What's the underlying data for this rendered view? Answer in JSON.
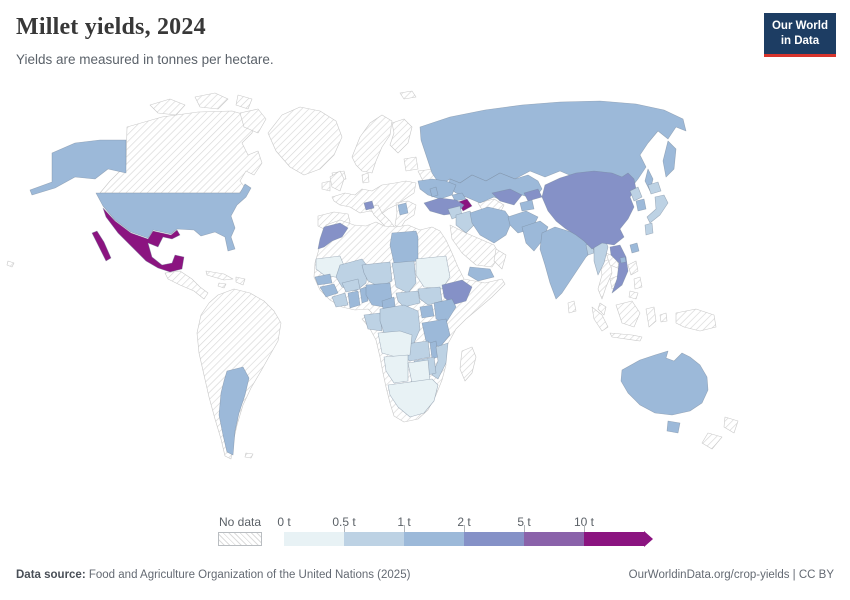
{
  "header": {
    "title": "Millet yields, 2024",
    "subtitle": "Yields are measured in tonnes per hectare."
  },
  "logo": {
    "line1": "Our World",
    "line2": "in Data",
    "bg": "#1d3d63",
    "accent": "#d7342d"
  },
  "legend": {
    "no_data_label": "No data",
    "tick_labels": [
      "0 t",
      "0.5 t",
      "1 t",
      "2 t",
      "5 t",
      "10 t"
    ],
    "bin_order": [
      "0-0.5",
      "0.5-1",
      "1-2",
      "2-5",
      "5-10",
      "10+"
    ]
  },
  "chart_data": {
    "type": "heatmap",
    "title": "Millet yields, 2024",
    "subtitle": "Yields are measured in tonnes per hectare.",
    "unit": "tonnes per hectare",
    "bins": [
      "0-0.5 t",
      "0.5-1 t",
      "1-2 t",
      "2-5 t",
      "5-10 t",
      "10+ t",
      "No data"
    ],
    "legend_position": "bottom"
  },
  "map": {
    "palette": {
      "0-0.5": "#e8f2f5",
      "0.5-1": "#bdd2e4",
      "1-2": "#9cb9d9",
      "2-5": "#8591c7",
      "5-10": "#8a62aa",
      "10+": "#8b1480"
    },
    "border_color": "#76879b",
    "nodata_border": "#c9c9c9",
    "hatch_line": "#d7d7d7",
    "countries": {
      "canada": "no-data",
      "greenland": "no-data",
      "iceland": "no-data",
      "svalbard": "no-data",
      "hawaii": "no-data",
      "central-america": "no-data",
      "cuba": "no-data",
      "hispaniola": "no-data",
      "jamaica": "no-data",
      "south-america": "no-data",
      "falkland-islands": "no-data",
      "united-kingdom": "no-data",
      "ireland": "no-data",
      "scandinavia": "no-data",
      "finland": "no-data",
      "baltic-states": "no-data",
      "belarus": "no-data",
      "denmark": "no-data",
      "europe-mainland": "no-data",
      "iberia": "no-data",
      "italy": "no-data",
      "sicily": "no-data",
      "balkans": "no-data",
      "saudi-arabia": "no-data",
      "oman": "no-data",
      "turkmenistan": "no-data",
      "mongolia": "no-data",
      "thailand": "no-data",
      "laos": "no-data",
      "cambodia": "no-data",
      "malaysia": "no-data",
      "sri-lanka": "no-data",
      "philippines": "no-data",
      "indonesia": "no-data",
      "new-guinea": "no-data",
      "new-zealand": "no-data",
      "madagascar": "no-data",
      "africa-other": "no-data",
      "alaska": "1-2",
      "united-states": "1-2",
      "argentina": "1-2",
      "russia": "1-2",
      "kazakhstan": "1-2",
      "ukraine": "1-2",
      "serbia": "1-2",
      "moldova": "1-2",
      "georgia": "1-2",
      "iran": "1-2",
      "afghanistan": "1-2",
      "tajikistan": "1-2",
      "pakistan": "1-2",
      "india": "1-2",
      "australia": "1-2",
      "tasmania": "1-2",
      "south-korea": "1-2",
      "taiwan": "1-2",
      "hainan": "1-2",
      "yemen": "1-2",
      "senegal": "1-2",
      "guinea": "1-2",
      "ghana": "1-2",
      "benin": "1-2",
      "nigeria": "1-2",
      "cameroon": "1-2",
      "uganda": "1-2",
      "kenya": "1-2",
      "tanzania": "1-2",
      "malawi": "1-2",
      "libya": "1-2",
      "syria": "0.5-1",
      "iraq": "0.5-1",
      "myanmar": "0.5-1",
      "bangladesh": "0.5-1",
      "north-korea": "0.5-1",
      "japan": "0.5-1",
      "mali": "0.5-1",
      "niger": "0.5-1",
      "chad": "0.5-1",
      "burkina-faso": "0.5-1",
      "cote-divoire": "0.5-1",
      "gabon-congo": "0.5-1",
      "central-african-republic": "0.5-1",
      "south-sudan": "0.5-1",
      "dr-congo": "0.5-1",
      "zambia": "0.5-1",
      "zimbabwe": "0.5-1",
      "mozambique": "0.5-1",
      "mauritania": "0-0.5",
      "sudan": "0-0.5",
      "angola": "0-0.5",
      "namibia": "0-0.5",
      "botswana": "0-0.5",
      "south-africa": "0-0.5",
      "china": "2-5",
      "vietnam": "2-5",
      "uzbekistan": "2-5",
      "kyrgyzstan": "2-5",
      "turkey": "2-5",
      "switzerland": "2-5",
      "morocco": "2-5",
      "ethiopia": "2-5",
      "mexico": "10+",
      "azerbaijan": "10+"
    }
  },
  "footer": {
    "source_label": "Data source:",
    "source_text": " Food and Agriculture Organization of the United Nations (2025)",
    "right_text": "OurWorldinData.org/crop-yields | CC BY"
  }
}
